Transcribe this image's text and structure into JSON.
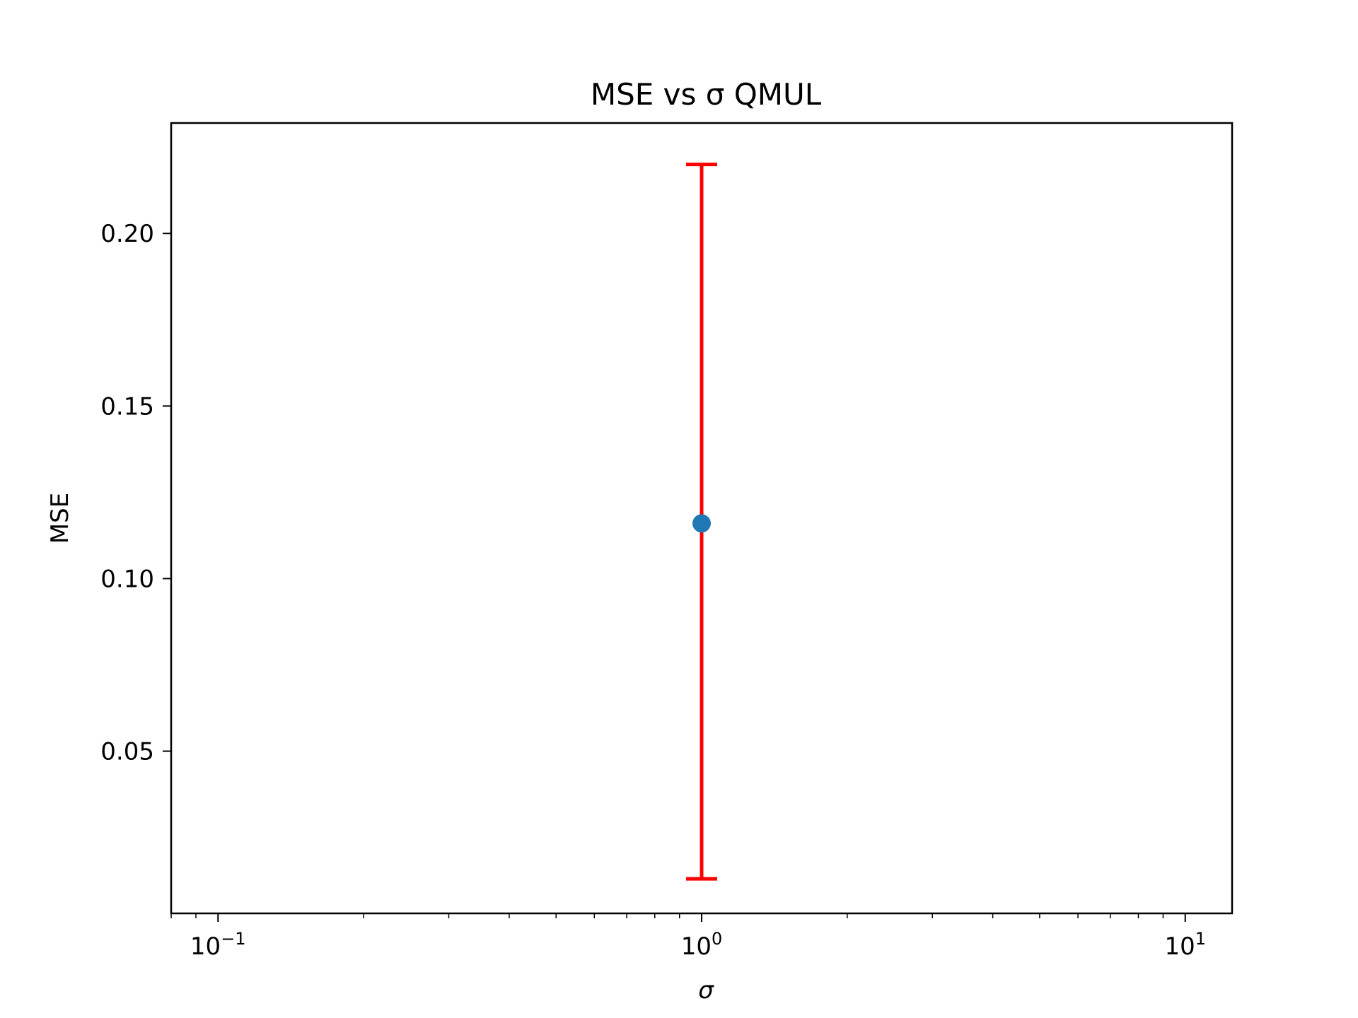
{
  "chart_data": {
    "type": "scatter",
    "title": "MSE vs σ QMUL",
    "xlabel": "σ",
    "ylabel": "MSE",
    "xscale": "log",
    "xlim": [
      0.08,
      12.5
    ],
    "ylim": [
      0.003,
      0.232
    ],
    "xticks": [
      {
        "value": 0.1,
        "base": "10",
        "exp": "−1"
      },
      {
        "value": 1,
        "base": "10",
        "exp": "0"
      },
      {
        "value": 10,
        "base": "10",
        "exp": "1"
      }
    ],
    "yticks": [
      {
        "value": 0.05,
        "label": "0.05"
      },
      {
        "value": 0.1,
        "label": "0.10"
      },
      {
        "value": 0.15,
        "label": "0.15"
      },
      {
        "value": 0.2,
        "label": "0.20"
      }
    ],
    "grid": false,
    "series": [
      {
        "x": [
          1.0
        ],
        "y": [
          0.116
        ],
        "error_low": [
          0.013
        ],
        "error_high": [
          0.22
        ],
        "marker_color": "#1f77b4",
        "error_color": "#ff0000"
      }
    ]
  }
}
